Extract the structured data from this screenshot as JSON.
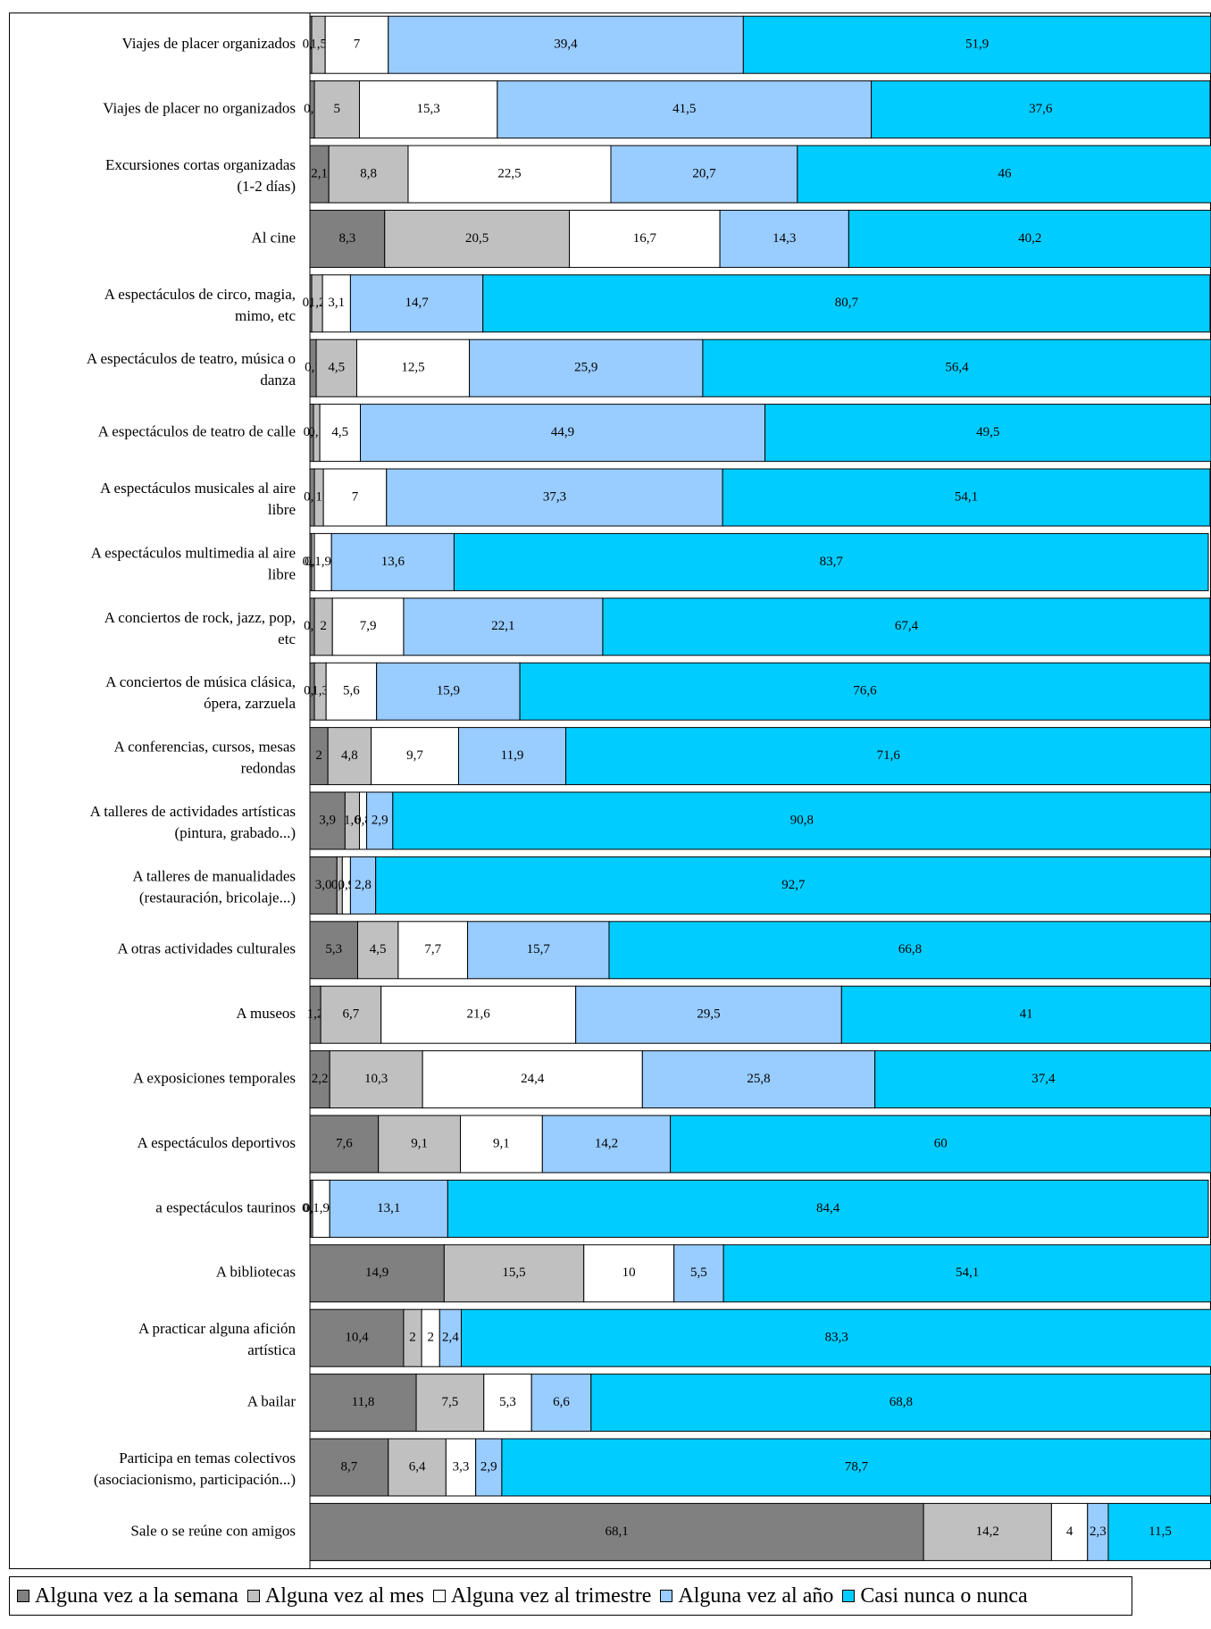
{
  "chart_data": {
    "type": "bar",
    "orientation": "horizontal",
    "stacked": true,
    "title": "",
    "xlabel": "",
    "ylabel": "",
    "xlim": [
      0,
      100
    ],
    "grid": false,
    "legend_position": "bottom",
    "categories": [
      "Viajes de placer organizados",
      "Viajes de placer no organizados",
      "Excursiones cortas organizadas (1-2 días)",
      "Al cine",
      "A espectáculos de circo, magia, mimo, etc",
      "A espectáculos de teatro, música o danza",
      "A espectáculos de teatro de calle",
      "A espectáculos musicales al aire libre",
      "A espectáculos multimedia al aire libre",
      "A conciertos de rock, jazz, pop, etc",
      "A conciertos de música clásica, ópera, zarzuela",
      "A conferencias, cursos, mesas redondas",
      "A talleres de actividades artísticas (pintura, grabado...)",
      "A talleres de manualidades (restauración, bricolaje...)",
      "A otras actividades culturales",
      "A museos",
      "A exposiciones temporales",
      "A espectáculos deportivos",
      "a espectáculos taurinos",
      "A bibliotecas",
      "A practicar alguna afición artística",
      "A bailar",
      "Participa en temas colectivos (asociacionismo, participación...)",
      "Sale o se reúne con amigos"
    ],
    "series": [
      {
        "name": "Alguna vez a la semana",
        "color": "#808080",
        "values": [
          0.2,
          0.5,
          2.1,
          8.3,
          0.2,
          0.7,
          0.4,
          0.5,
          0.2,
          0.5,
          0.5,
          2,
          3.9,
          3,
          5.3,
          1.2,
          2.2,
          7.6,
          0.1,
          14.9,
          10.4,
          11.8,
          8.7,
          68.1
        ],
        "labels": [
          "0,2",
          "0,5",
          "2,1",
          "8,3",
          "0,2",
          "0,7",
          "0,4",
          "0,5",
          "0,2",
          "0,5",
          "0,5",
          "2",
          "3,9",
          "3,0",
          "5,3",
          "1,2",
          "2,2",
          "7,6",
          "0,1",
          "14,9",
          "10,4",
          "11,8",
          "8,7",
          "68,1"
        ]
      },
      {
        "name": "Alguna vez al mes",
        "color": "#c0c0c0",
        "values": [
          1.5,
          5,
          8.8,
          20.5,
          1.2,
          4.5,
          0.7,
          1,
          0.3,
          2,
          1.3,
          4.8,
          1.6,
          0.6,
          4.5,
          6.7,
          10.3,
          9.1,
          0.2,
          15.5,
          2,
          7.5,
          6.4,
          14.2
        ],
        "labels": [
          "1,5",
          "5",
          "8,8",
          "20,5",
          "1,2",
          "4,5",
          "0,7",
          "1",
          "0,3",
          "2",
          "1,3",
          "4,8",
          "1,6",
          "0,6",
          "4,5",
          "6,7",
          "10,3",
          "9,1",
          "0,2",
          "15,5",
          "2",
          "7,5",
          "6,4",
          "14,2"
        ]
      },
      {
        "name": "Alguna vez al trimestre",
        "color": "#ffffff",
        "values": [
          7,
          15.3,
          22.5,
          16.7,
          3.1,
          12.5,
          4.5,
          7,
          1.9,
          7.9,
          5.6,
          9.7,
          0.8,
          0.9,
          7.7,
          21.6,
          24.4,
          9.1,
          1.9,
          10,
          2,
          5.3,
          3.3,
          4
        ],
        "labels": [
          "7",
          "15,3",
          "22,5",
          "16,7",
          "3,1",
          "12,5",
          "4,5",
          "7",
          "1,9",
          "7,9",
          "5,6",
          "9,7",
          "0,8",
          "0,9",
          "7,7",
          "21,6",
          "24,4",
          "9,1",
          "1,9",
          "10",
          "2",
          "5,3",
          "3,3",
          "4"
        ]
      },
      {
        "name": "Alguna vez al año",
        "color": "#99ccff",
        "values": [
          39.4,
          41.5,
          20.7,
          14.3,
          14.7,
          25.9,
          44.9,
          37.3,
          13.6,
          22.1,
          15.9,
          11.9,
          2.9,
          2.8,
          15.7,
          29.5,
          25.8,
          14.2,
          13.1,
          5.5,
          2.4,
          6.6,
          2.9,
          2.3
        ],
        "labels": [
          "39,4",
          "41,5",
          "20,7",
          "14,3",
          "14,7",
          "25,9",
          "44,9",
          "37,3",
          "13,6",
          "22,1",
          "15,9",
          "11,9",
          "2,9",
          "2,8",
          "15,7",
          "29,5",
          "25,8",
          "14,2",
          "13,1",
          "5,5",
          "2,4",
          "6,6",
          "2,9",
          "2,3"
        ]
      },
      {
        "name": "Casi nunca o nunca",
        "color": "#00ccff",
        "values": [
          51.9,
          37.6,
          46,
          40.2,
          80.7,
          56.4,
          49.5,
          54.1,
          83.7,
          67.4,
          76.6,
          71.6,
          90.8,
          92.7,
          66.8,
          41,
          37.4,
          60,
          84.4,
          54.1,
          83.3,
          68.8,
          78.7,
          11.5
        ],
        "labels": [
          "51,9",
          "37,6",
          "46",
          "40,2",
          "80,7",
          "56,4",
          "49,5",
          "54,1",
          "83,7",
          "67,4",
          "76,6",
          "71,6",
          "90,8",
          "92,7",
          "66,8",
          "41",
          "37,4",
          "60",
          "84,4",
          "54,1",
          "83,3",
          "68,8",
          "78,7",
          "11,5"
        ]
      }
    ]
  }
}
